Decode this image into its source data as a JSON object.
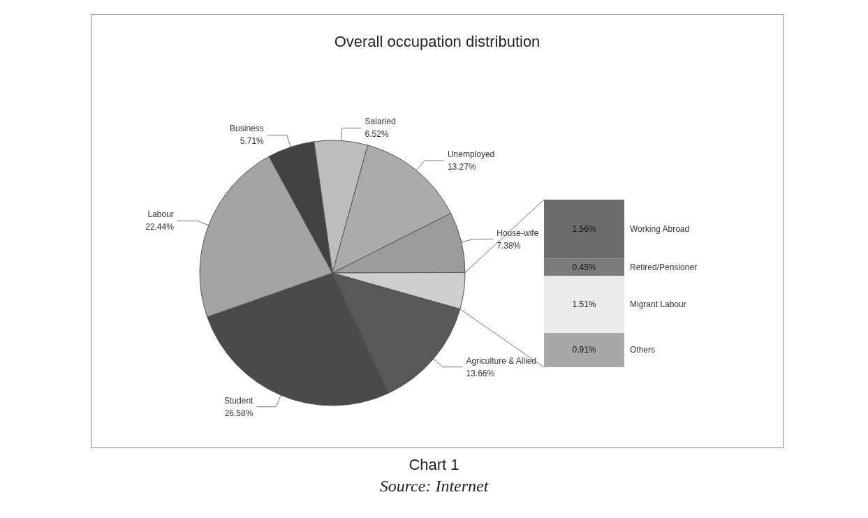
{
  "chart_data": [
    {
      "type": "pie",
      "title": "Overall occupation distribution",
      "categories": [
        "Salaried",
        "Unemployed",
        "House-wife",
        null,
        "Agriculture & Allied",
        "Student",
        "Labour",
        "Business"
      ],
      "values": [
        6.52,
        13.27,
        7.38,
        4.43,
        13.66,
        26.58,
        22.44,
        5.71
      ],
      "value_labels": [
        "6.52%",
        "13.27%",
        "7.38%",
        null,
        "13.66%",
        "26.58%",
        "22.44%",
        "5.71%"
      ],
      "colors": [
        "#bdbdbd",
        "#ababab",
        "#9c9c9c",
        "#cfcfcf",
        "#585858",
        "#4a4a4a",
        "#a3a3a3",
        "#424242"
      ],
      "annotations": [
        "Chart 1",
        "Source: Internet"
      ]
    },
    {
      "type": "bar",
      "stacked": true,
      "categories": [
        null
      ],
      "series": [
        {
          "name": "Others",
          "color": "#a8a8a8",
          "values": [
            0.91
          ],
          "value_labels": [
            "0.91%"
          ]
        },
        {
          "name": "Migrant Labour",
          "color": "#ebebeb",
          "values": [
            1.51
          ],
          "value_labels": [
            "1.51%"
          ]
        },
        {
          "name": "Retired/Pensioner",
          "color": "#7c7c7c",
          "values": [
            0.45
          ],
          "value_labels": [
            "0.45%"
          ]
        },
        {
          "name": "Working Abroad",
          "color": "#6c6c6c",
          "values": [
            1.56
          ],
          "value_labels": [
            "1.56%"
          ]
        }
      ]
    }
  ]
}
